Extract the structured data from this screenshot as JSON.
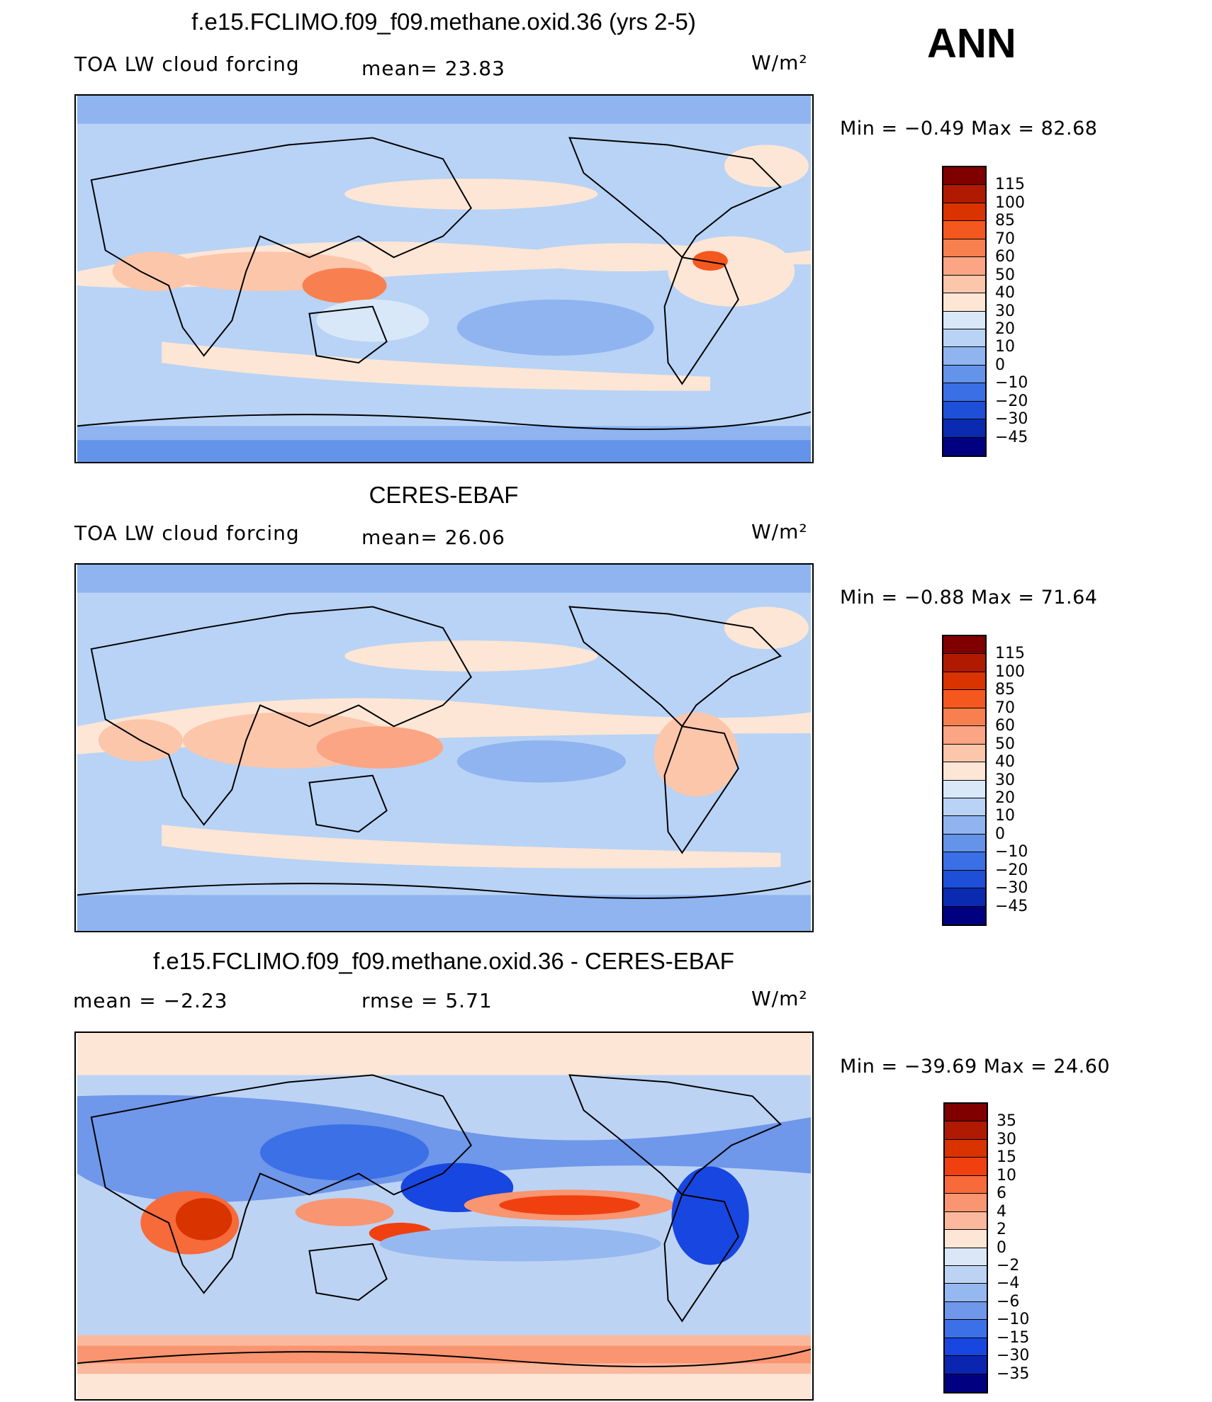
{
  "header": {
    "season": "ANN"
  },
  "panels": [
    {
      "id": "model",
      "title": "f.e15.FCLIMO.f09_f09.methane.oxid.36 (yrs 2-5)",
      "variable": "TOA LW cloud forcing",
      "stat1": "mean=  23.83",
      "units": "W/m²",
      "minmax": "Min =   −0.49  Max =   82.68",
      "colorbar": {
        "levels": [
          "115",
          "100",
          "85",
          "70",
          "60",
          "50",
          "40",
          "30",
          "20",
          "10",
          "0",
          "−10",
          "−20",
          "−30",
          "−45"
        ],
        "colors": [
          "#800000",
          "#b01a00",
          "#d93300",
          "#f5581e",
          "#f88050",
          "#fba585",
          "#fcc6ab",
          "#fde6d5",
          "#d8e8f8",
          "#b8d3f5",
          "#8fb4f0",
          "#6493ea",
          "#3a6fe5",
          "#1e4fd8",
          "#0a2ab0",
          "#000080"
        ]
      }
    },
    {
      "id": "obs",
      "title": "CERES-EBAF",
      "variable": "TOA LW cloud forcing",
      "stat1": "mean=  26.06",
      "units": "W/m²",
      "minmax": "Min =   −0.88  Max =   71.64",
      "colorbar": {
        "levels": [
          "115",
          "100",
          "85",
          "70",
          "60",
          "50",
          "40",
          "30",
          "20",
          "10",
          "0",
          "−10",
          "−20",
          "−30",
          "−45"
        ],
        "colors": [
          "#800000",
          "#b01a00",
          "#d93300",
          "#f5581e",
          "#f88050",
          "#fba585",
          "#fcc6ab",
          "#fde6d5",
          "#d8e8f8",
          "#b8d3f5",
          "#8fb4f0",
          "#6493ea",
          "#3a6fe5",
          "#1e4fd8",
          "#0a2ab0",
          "#000080"
        ]
      }
    },
    {
      "id": "diff",
      "title": "f.e15.FCLIMO.f09_f09.methane.oxid.36 - CERES-EBAF",
      "stat1": "mean =   −2.23",
      "stat2": "rmse =    5.71",
      "units": "W/m²",
      "minmax": "Min = −39.69  Max =   24.60",
      "colorbar": {
        "levels": [
          "35",
          "30",
          "15",
          "10",
          "6",
          "4",
          "2",
          "0",
          "−2",
          "−4",
          "−6",
          "−10",
          "−15",
          "−30",
          "−35"
        ],
        "colors": [
          "#800000",
          "#b01a00",
          "#d93300",
          "#f04010",
          "#f76a3a",
          "#f99570",
          "#fbb89c",
          "#fde6d5",
          "#dbe7f7",
          "#bdd3f3",
          "#96b8f0",
          "#6f97ea",
          "#3c70e6",
          "#1846e0",
          "#0a25b0",
          "#000080"
        ]
      }
    }
  ]
}
